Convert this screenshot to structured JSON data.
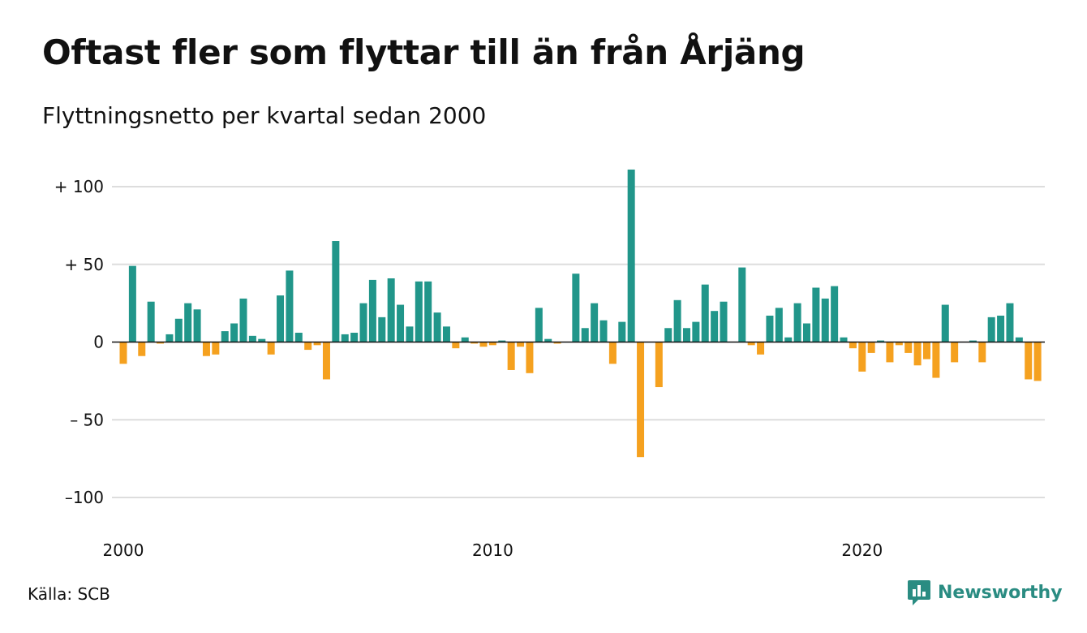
{
  "header": {
    "title": "Oftast fler som flyttar till än från Årjäng",
    "subtitle": "Flyttningsnetto per kvartal sedan 2000"
  },
  "footer": {
    "source": "Källa: SCB",
    "brand": "Newsworthy",
    "brand_icon": "bar-chart-speech-bubble-icon"
  },
  "colors": {
    "positive": "#21968a",
    "negative": "#f5a11f",
    "grid": "#dddddd",
    "zero_line": "#111111",
    "brand": "#2a8c82"
  },
  "chart_data": {
    "type": "bar",
    "title": "Oftast fler som flyttar till än från Årjäng",
    "subtitle": "Flyttningsnetto per kvartal sedan 2000",
    "xlabel": "",
    "ylabel": "",
    "x_tick_labels": [
      "2000",
      "2010",
      "2020"
    ],
    "y_ticks": [
      100,
      50,
      0,
      -50,
      -100
    ],
    "y_tick_labels": [
      "+ 100",
      "+  50",
      "0",
      "– 50",
      "–100"
    ],
    "ylim": [
      -110,
      112
    ],
    "grid": true,
    "legend": "none",
    "start_year": 2000,
    "periods_per_year": 4,
    "values": [
      -14,
      49,
      -9,
      26,
      -1,
      5,
      15,
      25,
      21,
      -9,
      -8,
      7,
      12,
      28,
      4,
      2,
      -8,
      30,
      46,
      6,
      -5,
      -2,
      -24,
      65,
      5,
      6,
      25,
      40,
      16,
      41,
      24,
      10,
      39,
      39,
      19,
      10,
      -4,
      3,
      -1,
      -3,
      -2,
      1,
      -18,
      -3,
      -20,
      22,
      2,
      -1,
      0,
      44,
      9,
      25,
      14,
      -14,
      13,
      111,
      -74,
      0,
      -29,
      9,
      27,
      9,
      13,
      37,
      20,
      26,
      0,
      48,
      -2,
      -8,
      17,
      22,
      3,
      25,
      12,
      35,
      28,
      36,
      3,
      -4,
      -19,
      -7,
      1,
      -13,
      -2,
      -7,
      -15,
      -11,
      -23,
      24,
      -13,
      0,
      1,
      -13,
      16,
      17,
      25,
      3,
      -24,
      -25
    ]
  }
}
